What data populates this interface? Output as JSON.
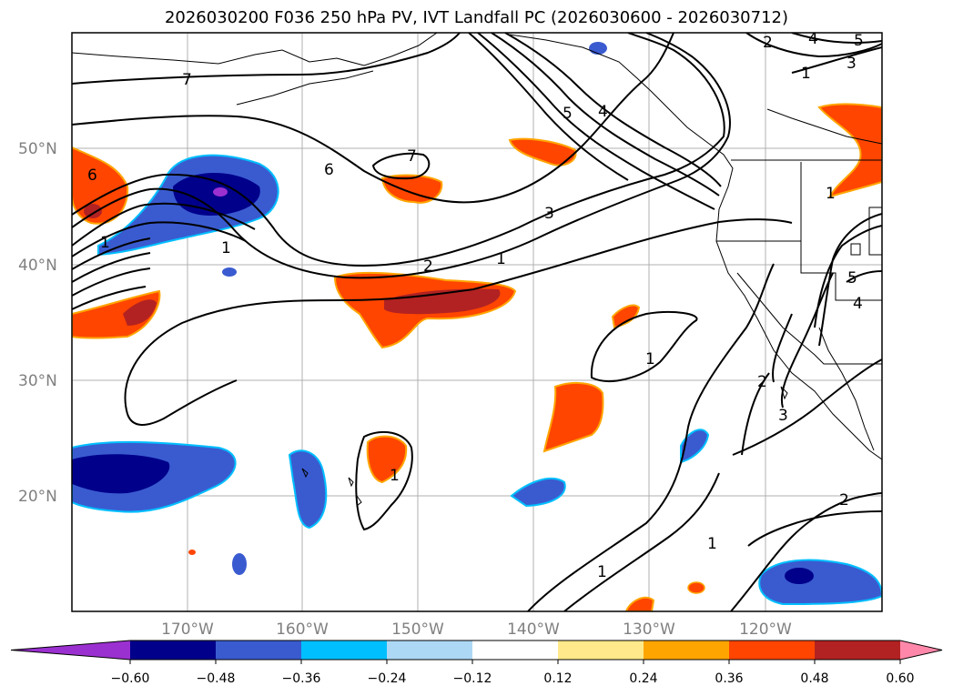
{
  "title": "2026030200 F036 250 hPa PV, IVT Landfall PC (2026030600 - 2026030712)",
  "lat_ticks": [
    "50°N",
    "40°N",
    "30°N",
    "20°N"
  ],
  "lon_ticks": [
    "170°W",
    "160°W",
    "150°W",
    "140°W",
    "130°W",
    "120°W"
  ],
  "colorbar": {
    "ticks": [
      "−0.60",
      "−0.48",
      "−0.36",
      "−0.24",
      "−0.12",
      "0.12",
      "0.24",
      "0.36",
      "0.48",
      "0.60"
    ],
    "colors": [
      "#9b30d0",
      "#00008b",
      "#3a5bd0",
      "#00bfff",
      "#add8f5",
      "#ffffff",
      "#ffe98a",
      "#ffa500",
      "#ff4500",
      "#b22222",
      "#ff88aa"
    ]
  },
  "contour_labels": [
    "7",
    "6",
    "1",
    "7",
    "6",
    "2",
    "5",
    "4",
    "3",
    "1",
    "2",
    "4",
    "5",
    "3",
    "1",
    "5",
    "4",
    "1",
    "2",
    "3",
    "1",
    "1",
    "1",
    "1",
    "2"
  ]
}
